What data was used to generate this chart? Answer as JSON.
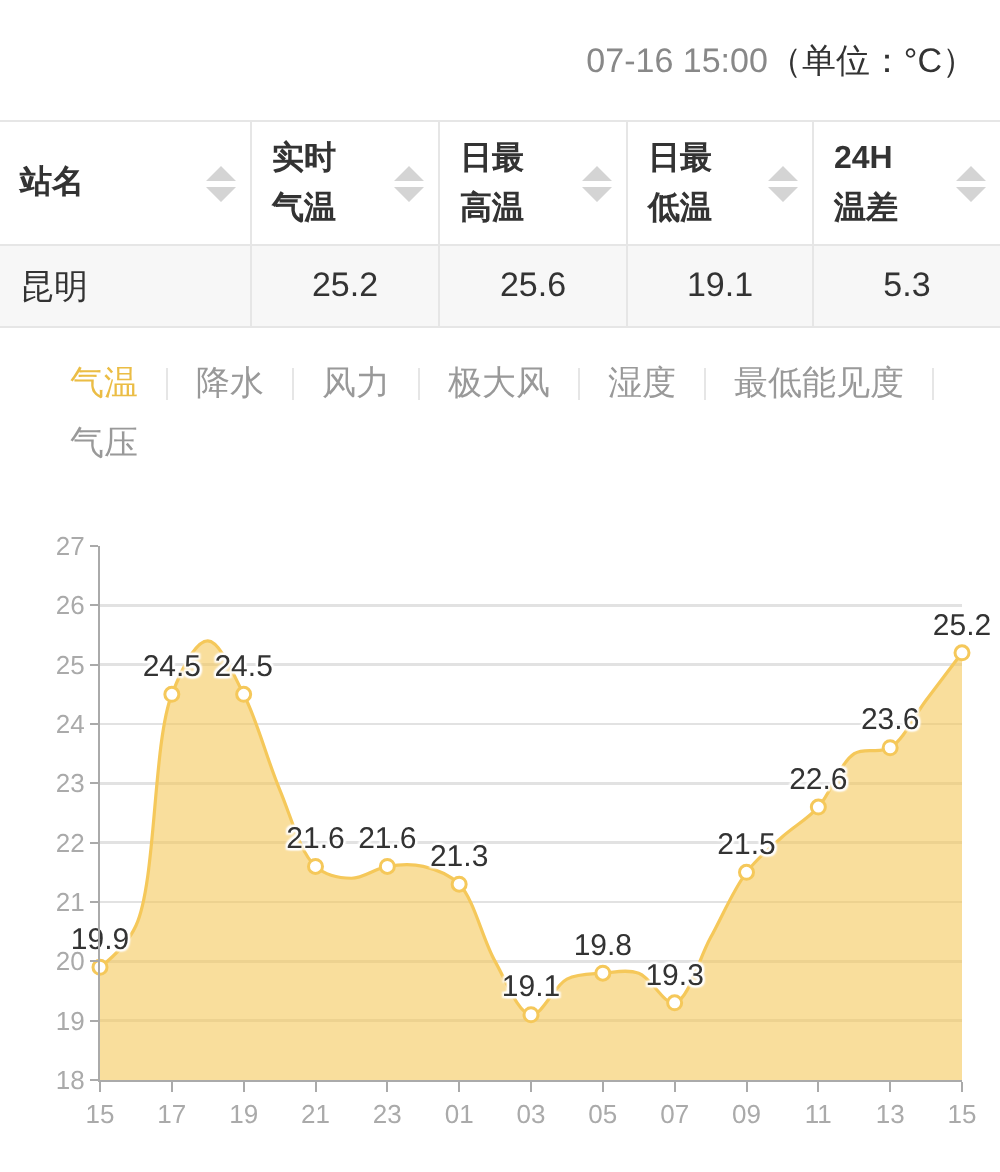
{
  "chart_data": [
    {
      "type": "other",
      "title": "07-16 15:00",
      "subtitle": "（单位：°C）",
      "annotations": [
        "站名",
        "实时气温",
        "日最高温",
        "日最低温",
        "24H温差",
        "昆明",
        "25.2",
        "25.6",
        "19.1",
        "5.3"
      ]
    },
    {
      "type": "area",
      "title": "气温",
      "annotations": [
        "降水",
        "风力",
        "极大风",
        "湿度",
        "最低能见度",
        "气压"
      ],
      "categories": [
        "15",
        null,
        "17",
        null,
        "19",
        null,
        "21",
        null,
        "23",
        null,
        "01",
        null,
        "03",
        null,
        "05",
        null,
        "07",
        null,
        "09",
        null,
        "11",
        null,
        "13",
        null,
        "15"
      ],
      "values": [
        19.9,
        20.6,
        24.5,
        25.4,
        24.5,
        22.9,
        21.6,
        21.4,
        21.6,
        21.6,
        21.3,
        20.0,
        19.1,
        19.7,
        19.8,
        19.8,
        19.3,
        20.4,
        21.5,
        22.1,
        22.6,
        23.5,
        23.6,
        24.4,
        25.2
      ],
      "value_labels": [
        "19.9",
        null,
        "24.5",
        null,
        "24.5",
        null,
        "21.6",
        null,
        "21.6",
        null,
        "21.3",
        null,
        "19.1",
        null,
        "19.8",
        null,
        "19.3",
        null,
        "21.5",
        null,
        "22.6",
        null,
        "23.6",
        null,
        "25.2"
      ],
      "color": "#f5c85a",
      "ylim": [
        18,
        27
      ],
      "yticks": [
        18,
        19,
        20,
        21,
        22,
        23,
        24,
        25,
        26,
        27
      ],
      "grid": "y",
      "marker": "circle"
    }
  ]
}
